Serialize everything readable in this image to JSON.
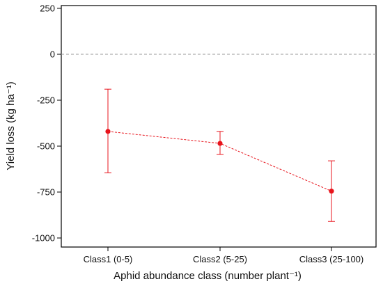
{
  "chart_data": {
    "type": "scatter",
    "title": "",
    "xlabel": "Aphid abundance class (number plant⁻¹)",
    "ylabel": "Yield loss (kg ha⁻¹)",
    "categories": [
      "Class1 (0-5)",
      "Class2 (5-25)",
      "Class3 (25-100)"
    ],
    "values": [
      -420,
      -485,
      -745
    ],
    "error_low": [
      -645,
      -545,
      -910
    ],
    "error_high": [
      -190,
      -420,
      -580
    ],
    "ylim": [
      -1050,
      275
    ],
    "yticks": [
      250,
      0,
      -250,
      -500,
      -750,
      -1000
    ],
    "ytick_labels": [
      "250",
      "0",
      "-250",
      "-500",
      "-750",
      "-1000"
    ],
    "reference_line": 0,
    "grid": false,
    "colors": {
      "series": "#e8141c",
      "reference": "#9a9a9a",
      "axis": "#000000"
    }
  }
}
